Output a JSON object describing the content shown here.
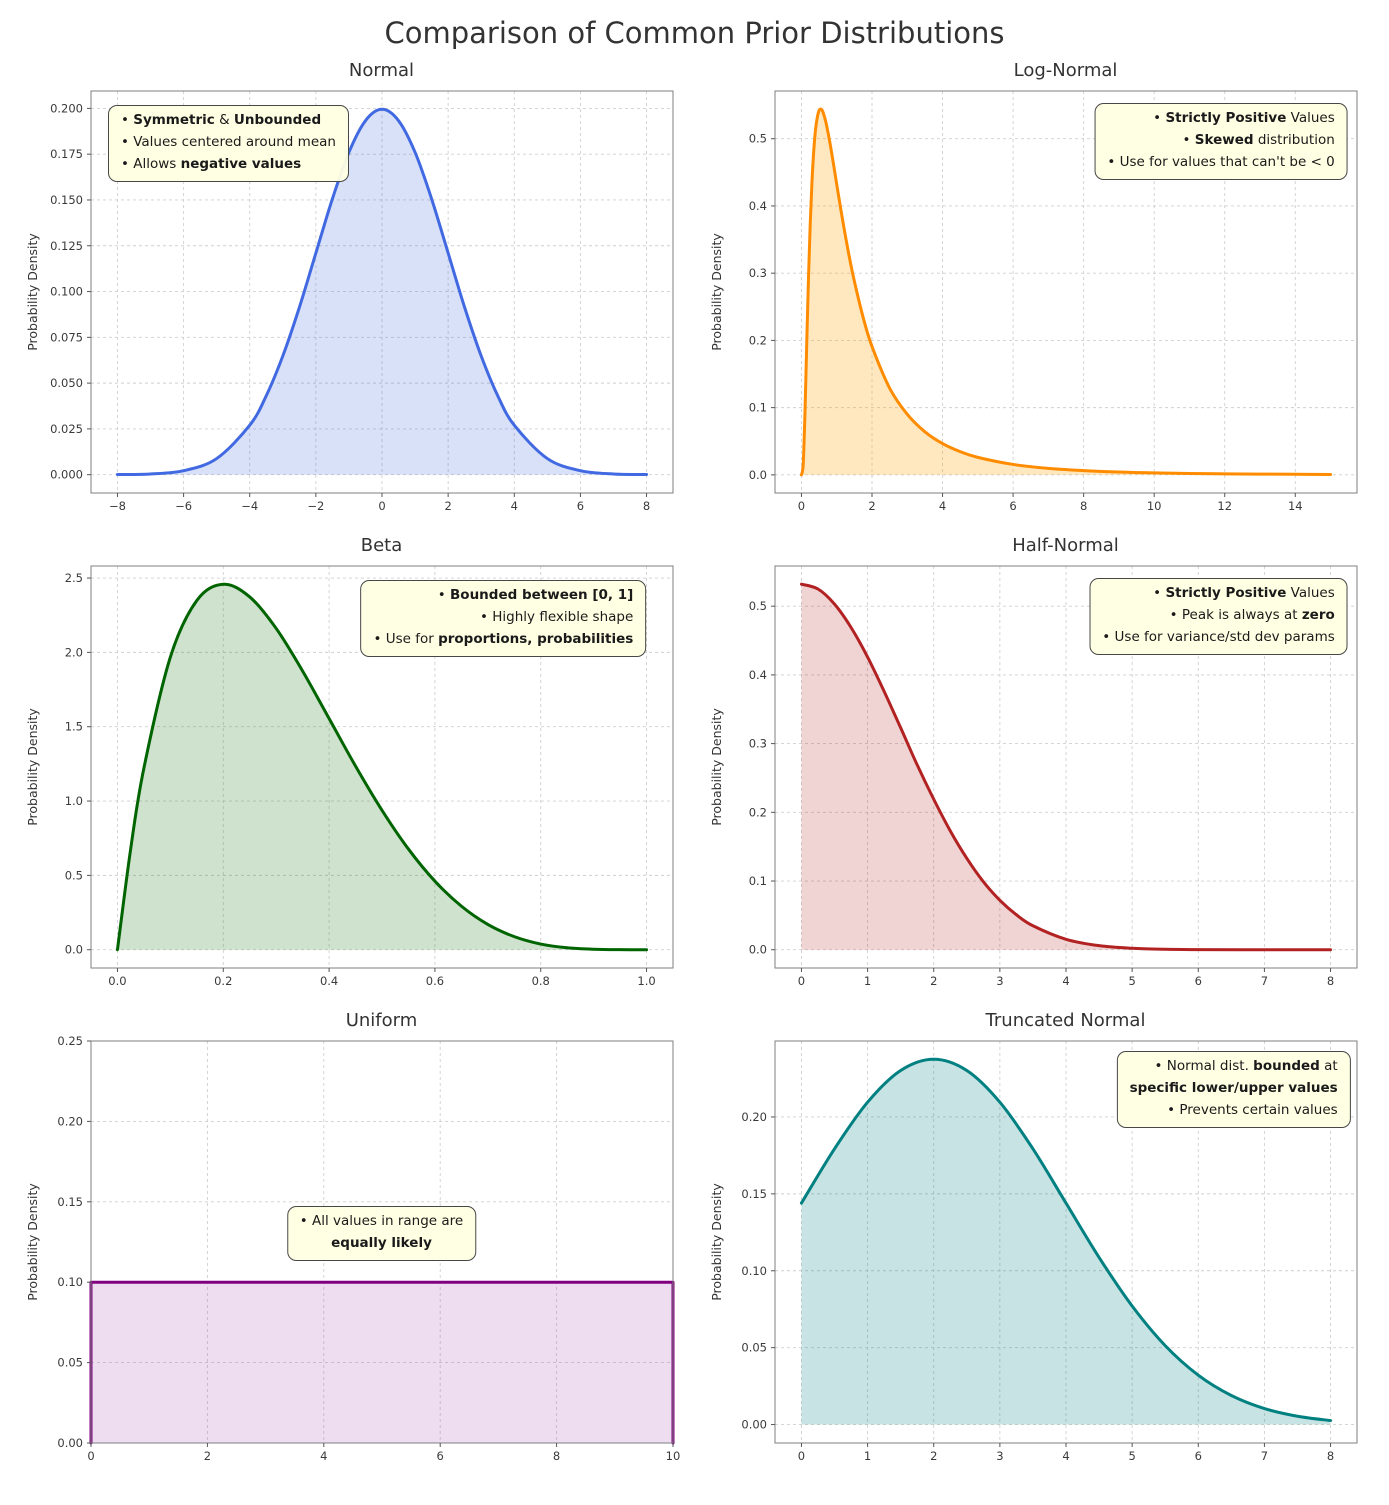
{
  "page": {
    "title": "Comparison of Common Prior Distributions"
  },
  "chart_data": [
    {
      "id": "normal",
      "type": "area",
      "title": "Normal",
      "ylabel": "Probability Density",
      "line_color": "#4169e1",
      "fill_color": "rgba(65,105,225,0.20)",
      "xlim": [
        -8.8,
        8.8
      ],
      "ylim": [
        -0.01,
        0.2095
      ],
      "xticks": [
        -8,
        -6,
        -4,
        -2,
        0,
        2,
        4,
        6,
        8
      ],
      "xtick_labels": [
        "−8",
        "−6",
        "−4",
        "−2",
        "0",
        "2",
        "4",
        "6",
        "8"
      ],
      "yticks": [
        0.0,
        0.025,
        0.05,
        0.075,
        0.1,
        0.125,
        0.15,
        0.175,
        0.2
      ],
      "ytick_labels": [
        "0.000",
        "0.025",
        "0.050",
        "0.075",
        "0.100",
        "0.125",
        "0.150",
        "0.175",
        "0.200"
      ],
      "smooth": true,
      "x": [
        -8,
        -7,
        -6,
        -5,
        -4,
        -3.5,
        -3,
        -2.5,
        -2,
        -1.5,
        -1,
        -0.5,
        0,
        0.5,
        1,
        1.5,
        2,
        2.5,
        3,
        3.5,
        4,
        5,
        6,
        7,
        8
      ],
      "y": [
        0.0001,
        0.0004,
        0.0022,
        0.0088,
        0.027,
        0.0431,
        0.0648,
        0.0913,
        0.121,
        0.1506,
        0.176,
        0.1933,
        0.1995,
        0.1933,
        0.176,
        0.1506,
        0.121,
        0.0913,
        0.0648,
        0.0431,
        0.027,
        0.0088,
        0.0022,
        0.0004,
        0.0001
      ],
      "annotation": {
        "anchor": "tl",
        "x": 0.03,
        "y": 0.035,
        "align": "left",
        "lines": [
          [
            [
              "• ",
              0
            ],
            [
              "Symmetric",
              1
            ],
            [
              " & ",
              0
            ],
            [
              "Unbounded",
              1
            ]
          ],
          [
            [
              "• Values centered around mean",
              0
            ]
          ],
          [
            [
              "• Allows ",
              0
            ],
            [
              "negative values",
              1
            ]
          ]
        ]
      }
    },
    {
      "id": "log-normal",
      "type": "area",
      "title": "Log-Normal",
      "ylabel": "Probability Density",
      "line_color": "#ff8c00",
      "fill_color": "rgba(255,165,0,0.25)",
      "xlim": [
        -0.75,
        15.75
      ],
      "ylim": [
        -0.027,
        0.571
      ],
      "xticks": [
        0,
        2,
        4,
        6,
        8,
        10,
        12,
        14
      ],
      "xtick_labels": [
        "0",
        "2",
        "4",
        "6",
        "8",
        "10",
        "12",
        "14"
      ],
      "yticks": [
        0.0,
        0.1,
        0.2,
        0.3,
        0.4,
        0.5
      ],
      "ytick_labels": [
        "0.0",
        "0.1",
        "0.2",
        "0.3",
        "0.4",
        "0.5"
      ],
      "smooth": true,
      "x": [
        0,
        0.05,
        0.1,
        0.15,
        0.2,
        0.25,
        0.3,
        0.35,
        0.4,
        0.45,
        0.5,
        0.55,
        0.6,
        0.65,
        0.7,
        0.8,
        0.9,
        1.0,
        1.1,
        1.2,
        1.35,
        1.5,
        1.75,
        2,
        2.5,
        3,
        3.5,
        4,
        4.5,
        5,
        6,
        7,
        8,
        9,
        10,
        11,
        12,
        13,
        14,
        15
      ],
      "y": [
        0,
        0.016,
        0.093,
        0.196,
        0.294,
        0.375,
        0.438,
        0.483,
        0.514,
        0.532,
        0.542,
        0.544,
        0.541,
        0.533,
        0.523,
        0.496,
        0.465,
        0.432,
        0.4,
        0.369,
        0.326,
        0.288,
        0.234,
        0.191,
        0.129,
        0.09,
        0.064,
        0.0465,
        0.0345,
        0.026,
        0.0155,
        0.0096,
        0.0063,
        0.0042,
        0.0029,
        0.002,
        0.0015,
        0.0011,
        0.0008,
        0.0006
      ],
      "annotation": {
        "anchor": "tr",
        "x": 0.985,
        "y": 0.03,
        "align": "right",
        "lines": [
          [
            [
              "• ",
              0
            ],
            [
              "Strictly Positive",
              1
            ],
            [
              " Values",
              0
            ]
          ],
          [
            [
              "• ",
              0
            ],
            [
              "Skewed",
              1
            ],
            [
              " distribution",
              0
            ]
          ],
          [
            [
              "• Use for values that can't be < 0",
              0
            ]
          ]
        ]
      }
    },
    {
      "id": "beta",
      "type": "area",
      "title": "Beta",
      "ylabel": "Probability Density",
      "line_color": "#006400",
      "fill_color": "rgba(60,140,60,0.25)",
      "xlim": [
        -0.05,
        1.05
      ],
      "ylim": [
        -0.123,
        2.581
      ],
      "xticks": [
        0.0,
        0.2,
        0.4,
        0.6,
        0.8,
        1.0
      ],
      "xtick_labels": [
        "0.0",
        "0.2",
        "0.4",
        "0.6",
        "0.8",
        "1.0"
      ],
      "yticks": [
        0.0,
        0.5,
        1.0,
        1.5,
        2.0,
        2.5
      ],
      "ytick_labels": [
        "0.0",
        "0.5",
        "1.0",
        "1.5",
        "2.0",
        "2.5"
      ],
      "smooth": true,
      "x": [
        0,
        0.025,
        0.05,
        0.1,
        0.15,
        0.2,
        0.25,
        0.3,
        0.35,
        0.4,
        0.45,
        0.5,
        0.55,
        0.6,
        0.65,
        0.7,
        0.75,
        0.8,
        0.85,
        0.9,
        0.95,
        1
      ],
      "y": [
        0,
        0.678,
        1.222,
        1.968,
        2.349,
        2.458,
        2.373,
        2.161,
        1.874,
        1.555,
        1.235,
        0.938,
        0.677,
        0.461,
        0.293,
        0.17,
        0.088,
        0.038,
        0.013,
        0.003,
        0.0002,
        0
      ],
      "annotation": {
        "anchor": "tr",
        "x": 0.955,
        "y": 0.035,
        "align": "right",
        "lines": [
          [
            [
              "• ",
              0
            ],
            [
              "Bounded between [0, 1]",
              1
            ]
          ],
          [
            [
              "• Highly flexible shape",
              0
            ]
          ],
          [
            [
              "• Use for ",
              0
            ],
            [
              "proportions, probabilities",
              1
            ]
          ]
        ]
      }
    },
    {
      "id": "half-normal",
      "type": "area",
      "title": "Half-Normal",
      "ylabel": "Probability Density",
      "line_color": "#b22222",
      "fill_color": "rgba(178,34,34,0.20)",
      "xlim": [
        -0.4,
        8.4
      ],
      "ylim": [
        -0.0266,
        0.5585
      ],
      "xticks": [
        0,
        1,
        2,
        3,
        4,
        5,
        6,
        7,
        8
      ],
      "xtick_labels": [
        "0",
        "1",
        "2",
        "3",
        "4",
        "5",
        "6",
        "7",
        "8"
      ],
      "yticks": [
        0.0,
        0.1,
        0.2,
        0.3,
        0.4,
        0.5
      ],
      "ytick_labels": [
        "0.0",
        "0.1",
        "0.2",
        "0.3",
        "0.4",
        "0.5"
      ],
      "smooth": true,
      "x": [
        0,
        0.25,
        0.5,
        0.75,
        1,
        1.25,
        1.5,
        1.75,
        2,
        2.25,
        2.5,
        2.75,
        3,
        3.25,
        3.5,
        4,
        4.5,
        5,
        5.5,
        6,
        7,
        8
      ],
      "y": [
        0.532,
        0.525,
        0.503,
        0.469,
        0.426,
        0.376,
        0.323,
        0.269,
        0.219,
        0.173,
        0.133,
        0.099,
        0.072,
        0.0509,
        0.0349,
        0.0152,
        0.0059,
        0.0021,
        0.0006,
        0.0002,
        0.0,
        0
      ],
      "annotation": {
        "anchor": "tr",
        "x": 0.985,
        "y": 0.03,
        "align": "right",
        "lines": [
          [
            [
              "• ",
              0
            ],
            [
              "Strictly Positive",
              1
            ],
            [
              " Values",
              0
            ]
          ],
          [
            [
              "• Peak is always at ",
              0
            ],
            [
              "zero",
              1
            ]
          ],
          [
            [
              "• Use for variance/std dev params",
              0
            ]
          ]
        ]
      }
    },
    {
      "id": "uniform",
      "type": "area",
      "title": "Uniform",
      "ylabel": "Probability Density",
      "line_color": "#800080",
      "fill_color": "rgba(160,60,170,0.18)",
      "xlim": [
        0,
        10
      ],
      "ylim": [
        0,
        0.25
      ],
      "xticks": [
        0,
        2,
        4,
        6,
        8,
        10
      ],
      "xtick_labels": [
        "0",
        "2",
        "4",
        "6",
        "8",
        "10"
      ],
      "yticks": [
        0.0,
        0.05,
        0.1,
        0.15,
        0.2,
        0.25
      ],
      "ytick_labels": [
        "0.00",
        "0.05",
        "0.10",
        "0.15",
        "0.20",
        "0.25"
      ],
      "smooth": false,
      "x": [
        0,
        0,
        10,
        10
      ],
      "y": [
        0,
        0.1,
        0.1,
        0
      ],
      "annotation": {
        "anchor": "tc",
        "x": 0.5,
        "y": 0.41,
        "align": "center",
        "lines": [
          [
            [
              "• All values in range are",
              0
            ]
          ],
          [
            [
              "equally likely",
              1
            ]
          ]
        ]
      }
    },
    {
      "id": "truncated-normal",
      "type": "area",
      "title": "Truncated Normal",
      "ylabel": "Probability Density",
      "line_color": "#008080",
      "fill_color": "rgba(0,128,128,0.22)",
      "xlim": [
        -0.4,
        8.4
      ],
      "ylim": [
        -0.012,
        0.2494
      ],
      "xticks": [
        0,
        1,
        2,
        3,
        4,
        5,
        6,
        7,
        8
      ],
      "xtick_labels": [
        "0",
        "1",
        "2",
        "3",
        "4",
        "5",
        "6",
        "7",
        "8"
      ],
      "yticks": [
        0.0,
        0.05,
        0.1,
        0.15,
        0.2
      ],
      "ytick_labels": [
        "0.00",
        "0.05",
        "0.10",
        "0.15",
        "0.20"
      ],
      "smooth": true,
      "x": [
        0,
        0.5,
        1,
        1.5,
        2,
        2.5,
        3,
        3.5,
        4,
        4.5,
        5,
        5.5,
        6,
        6.5,
        7,
        7.5,
        8
      ],
      "y": [
        0.144,
        0.1793,
        0.2096,
        0.2302,
        0.2375,
        0.2302,
        0.2096,
        0.1793,
        0.144,
        0.1087,
        0.0771,
        0.0513,
        0.0321,
        0.0189,
        0.0104,
        0.0054,
        0.0026
      ],
      "annotation": {
        "anchor": "tr",
        "x": 0.99,
        "y": 0.025,
        "align": "right",
        "lines": [
          [
            [
              "• Normal dist. ",
              0
            ],
            [
              "bounded",
              1
            ],
            [
              " at",
              0
            ]
          ],
          [
            [
              "specific lower/upper values",
              1
            ]
          ],
          [
            [
              "• Prevents certain values",
              0
            ]
          ]
        ]
      }
    }
  ]
}
